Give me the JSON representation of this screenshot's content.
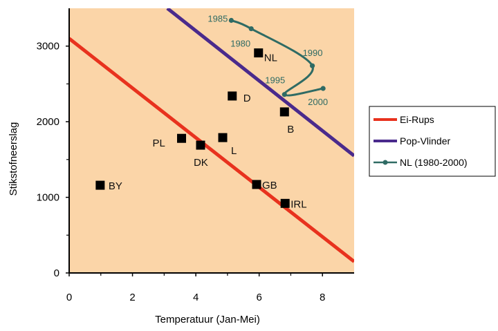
{
  "colors": {
    "plot_bg": "#fbd5a8",
    "ei_rups": "#e8321e",
    "pop_vlinder": "#4a2a8c",
    "nl_path": "#2f6b64",
    "marker": "#000000",
    "axis": "#000000"
  },
  "chart_data": {
    "type": "scatter",
    "xlabel": "Temperatuur (Jan-Mei)",
    "ylabel": "Stikstofneerslag",
    "xlim": [
      0,
      9
    ],
    "ylim": [
      0,
      3500
    ],
    "xticks": [
      0,
      2,
      4,
      6,
      8
    ],
    "yticks": [
      0,
      1000,
      2000,
      3000
    ],
    "grid": false,
    "legend_position": "right",
    "legend": [
      {
        "label": "Ei-Rups",
        "kind": "line",
        "color": "#e8321e"
      },
      {
        "label": "Pop-Vlinder",
        "kind": "line",
        "color": "#4a2a8c"
      },
      {
        "label": "NL (1980-2000)",
        "kind": "line-marker",
        "color": "#2f6b64"
      }
    ],
    "lines": [
      {
        "name": "Ei-Rups",
        "color": "#e8321e",
        "x": [
          0,
          9
        ],
        "y": [
          3100,
          150
        ]
      },
      {
        "name": "Pop-Vlinder",
        "color": "#4a2a8c",
        "x": [
          3.1,
          9
        ],
        "y": [
          3500,
          1550
        ]
      }
    ],
    "countries": [
      {
        "label": "BY",
        "x": 0.98,
        "y": 1160
      },
      {
        "label": "PL",
        "x": 3.55,
        "y": 1780
      },
      {
        "label": "DK",
        "x": 4.15,
        "y": 1690
      },
      {
        "label": "L",
        "x": 4.85,
        "y": 1790
      },
      {
        "label": "D",
        "x": 5.15,
        "y": 2340
      },
      {
        "label": "NL",
        "x": 5.98,
        "y": 2910
      },
      {
        "label": "B",
        "x": 6.8,
        "y": 2130
      },
      {
        "label": "GB",
        "x": 5.92,
        "y": 1170
      },
      {
        "label": "IRL",
        "x": 6.82,
        "y": 920
      }
    ],
    "nl_path": {
      "name": "NL (1980-2000)",
      "points": [
        {
          "year": "1985",
          "x": 5.12,
          "y": 3340
        },
        {
          "year": "1980",
          "x": 5.75,
          "y": 3230
        },
        {
          "year": "1990",
          "x": 7.68,
          "y": 2740
        },
        {
          "year": "1995",
          "x": 6.8,
          "y": 2360
        },
        {
          "year": "2000",
          "x": 8.02,
          "y": 2440
        }
      ]
    }
  }
}
